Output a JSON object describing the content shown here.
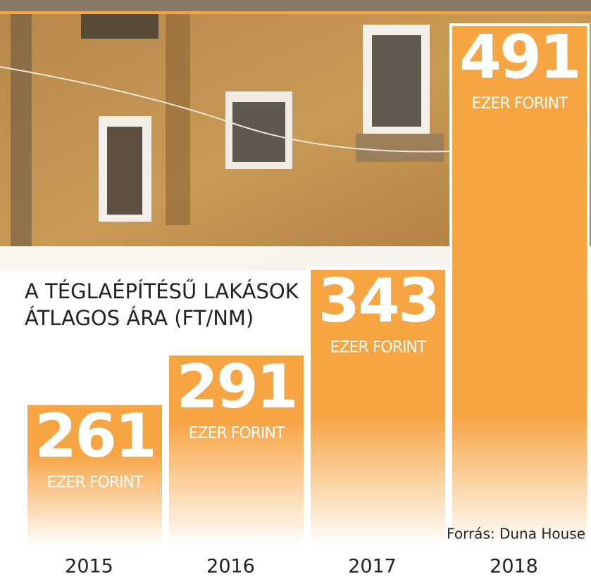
{
  "chart_data": {
    "type": "bar",
    "title": "A TÉGLAÉPÍTÉSŰ LAKÁSOK ÁTLAGOS ÁRA (FT/NM)",
    "categories": [
      "2015",
      "2016",
      "2017",
      "2018"
    ],
    "values": [
      261,
      291,
      343,
      491
    ],
    "unit": "EZER FORINT",
    "color": "#f7a443",
    "ylim": [
      175,
      491
    ],
    "source": "Forrás: Duna House"
  }
}
